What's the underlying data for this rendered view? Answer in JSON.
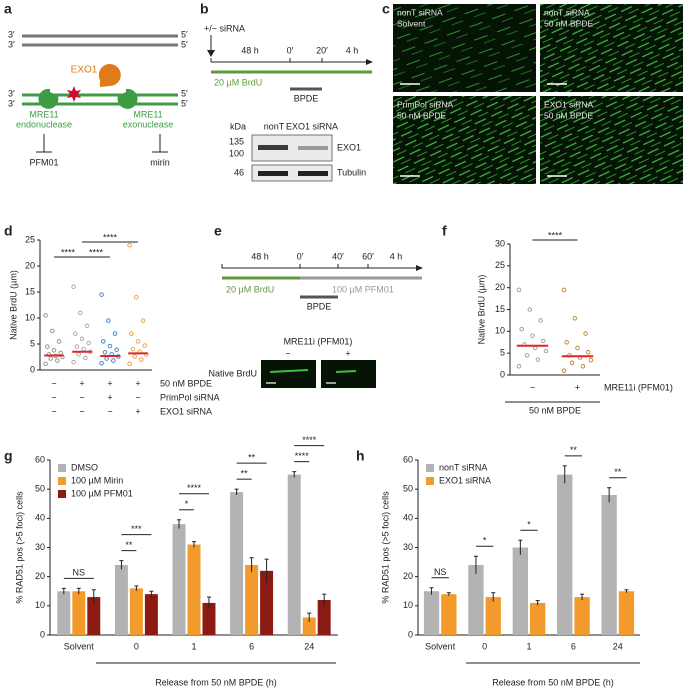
{
  "panel_labels": [
    "a",
    "b",
    "c",
    "d",
    "e",
    "f",
    "g",
    "h"
  ],
  "panel_a": {
    "ends": [
      "3′",
      "5′",
      "3′",
      "5′",
      "3′",
      "5′",
      "3′",
      "5′"
    ],
    "enzyme": "EXO1",
    "endonuclease": [
      "MRE11",
      "endonuclease"
    ],
    "exonuclease": [
      "MRE11",
      "exonuclease"
    ],
    "inhibitors": [
      "PFM01",
      "mirin"
    ]
  },
  "panel_b": {
    "sirna": "+/− siRNA",
    "times": [
      "48 h",
      "0′",
      "20′",
      "4 h"
    ],
    "brdu": "20 µM BrdU",
    "bpde": "BPDE",
    "blot": {
      "kda": "kDa",
      "lanes": [
        "nonT",
        "EXO1 siRNA"
      ],
      "markers": [
        135,
        100,
        46
      ],
      "bands": [
        "EXO1",
        "Tubulin"
      ]
    }
  },
  "panel_c": {
    "images": [
      [
        "nonT siRNA",
        "Solvent"
      ],
      [
        "nonT siRNA",
        "50 nM BPDE"
      ],
      [
        "PrimPol siRNA",
        "50 nM BPDE"
      ],
      [
        "EXO1 siRNA",
        "50 nM BPDE"
      ]
    ]
  },
  "panel_e": {
    "times": [
      "48 h",
      "0′",
      "40′",
      "60′",
      "4 h"
    ],
    "brdu": "20 µM BrdU",
    "pfm": "100 µM PFM01",
    "bpde": "BPDE",
    "treatment": "MRE11i (PFM01)",
    "signs": [
      "−",
      "+"
    ],
    "row_label": "Native BrdU"
  },
  "chart_data": [
    {
      "type": "strip",
      "y_label": "Native BrdU (µm)",
      "ylim": [
        0,
        25
      ],
      "yticks": [
        0,
        5,
        10,
        15,
        20,
        25
      ],
      "groups": [
        {
          "color": "#8c8c8c",
          "values": [
            1.2,
            1.8,
            2.2,
            2.5,
            2.7,
            3.0,
            3.3,
            3.8,
            4.5,
            5.5,
            7.5,
            10.5
          ],
          "median": 2.8
        },
        {
          "color": "#a6a6a6",
          "values": [
            1.5,
            2.3,
            3.0,
            3.5,
            4.0,
            4.5,
            5.2,
            6.0,
            7.0,
            8.5,
            11.0,
            16.0
          ],
          "median": 3.5
        },
        {
          "color": "#3b7dc4",
          "values": [
            1.3,
            1.8,
            2.2,
            2.6,
            3.0,
            3.4,
            3.9,
            4.6,
            5.5,
            7.0,
            9.5,
            14.5
          ],
          "median": 2.7
        },
        {
          "color": "#f39a2d",
          "values": [
            1.2,
            2.0,
            2.6,
            3.0,
            3.5,
            4.0,
            4.7,
            5.5,
            7.0,
            9.5,
            14.0,
            24.0
          ],
          "median": 3.2
        }
      ],
      "median_color": "#e0262b",
      "conditions": [
        {
          "label": "50 nM BPDE",
          "marks": [
            "−",
            "+",
            "+",
            "+"
          ]
        },
        {
          "label": "PrimPol siRNA",
          "marks": [
            "−",
            "−",
            "+",
            "−"
          ]
        },
        {
          "label": "EXO1 siRNA",
          "marks": [
            "−",
            "−",
            "−",
            "+"
          ]
        }
      ],
      "significance": [
        "****",
        "****",
        "****"
      ]
    },
    {
      "type": "strip",
      "y_label": "Native BrdU (µm)",
      "ylim": [
        0,
        30
      ],
      "yticks": [
        0,
        5,
        10,
        15,
        20,
        25,
        30
      ],
      "groups": [
        {
          "color": "#9a9a9a",
          "values": [
            2.0,
            3.5,
            4.5,
            5.5,
            6.2,
            7.0,
            7.8,
            9.0,
            10.5,
            12.5,
            15.0,
            19.5
          ],
          "median": 6.7
        },
        {
          "color": "#b8862b",
          "values": [
            1.0,
            2.0,
            2.8,
            3.4,
            4.0,
            4.5,
            5.2,
            6.2,
            7.5,
            9.5,
            13.0,
            19.5
          ],
          "median": 4.3
        }
      ],
      "median_color": "#e0262b",
      "conditions": [
        {
          "label": "MRE11i (PFM01)",
          "marks": [
            "−",
            "+"
          ]
        }
      ],
      "treatment": "50 nM BPDE",
      "significance": [
        "****"
      ]
    },
    {
      "type": "bar",
      "y_label": "% RAD51 pos (>5 foci) cells",
      "x_label": "Release from 50 nM BPDE (h)",
      "categories": [
        "Solvent",
        "0",
        "1",
        "6",
        "24"
      ],
      "ylim": [
        0,
        60
      ],
      "yticks": [
        0,
        10,
        20,
        30,
        40,
        50,
        60
      ],
      "series": [
        {
          "name": "DMSO",
          "color": "#b3b3b3",
          "values": [
            15,
            24,
            38,
            49,
            55
          ],
          "errors": [
            1,
            1.5,
            1.5,
            1,
            1
          ]
        },
        {
          "name": "100 µM Mirin",
          "color": "#f39a2d",
          "values": [
            15,
            16,
            31,
            24,
            6
          ],
          "errors": [
            1,
            0.8,
            1,
            2.5,
            1.5
          ]
        },
        {
          "name": "100 µM PFM01",
          "color": "#8b1a12",
          "values": [
            13,
            14,
            11,
            22,
            12
          ],
          "errors": [
            2.5,
            1,
            2,
            4,
            2
          ]
        }
      ],
      "significance": [
        "NS",
        "**",
        "***",
        "*",
        "****",
        "**",
        "**",
        "****",
        "****"
      ]
    },
    {
      "type": "bar",
      "y_label": "% RAD51 pos (>5 foci) cells",
      "x_label": "Release from 50 nM BPDE (h)",
      "categories": [
        "Solvent",
        "0",
        "1",
        "6",
        "24"
      ],
      "ylim": [
        0,
        60
      ],
      "yticks": [
        0,
        10,
        20,
        30,
        40,
        50,
        60
      ],
      "series": [
        {
          "name": "nonT siRNA",
          "color": "#b3b3b3",
          "values": [
            15,
            24,
            30,
            55,
            48
          ],
          "errors": [
            1.2,
            3,
            2.5,
            3,
            2.5
          ]
        },
        {
          "name": "EXO1 siRNA",
          "color": "#f39a2d",
          "values": [
            14,
            13,
            11,
            13,
            15
          ],
          "errors": [
            0.5,
            1.5,
            0.8,
            1,
            0.5
          ]
        }
      ],
      "significance": [
        "NS",
        "*",
        "*",
        "**",
        "**"
      ]
    }
  ]
}
